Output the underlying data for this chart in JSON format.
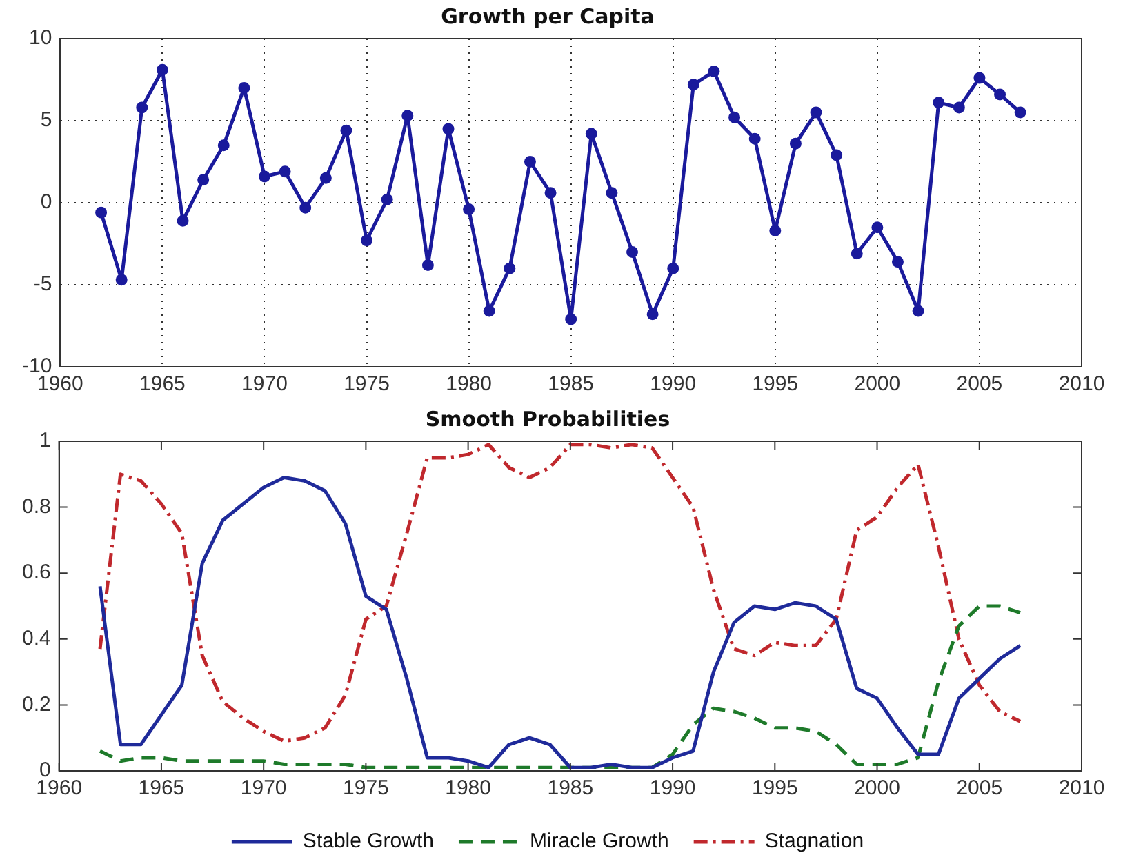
{
  "chart_data": [
    {
      "type": "line",
      "title": "Growth per Capita",
      "x": [
        1962,
        1963,
        1964,
        1965,
        1966,
        1967,
        1968,
        1969,
        1970,
        1971,
        1972,
        1973,
        1974,
        1975,
        1976,
        1977,
        1978,
        1979,
        1980,
        1981,
        1982,
        1983,
        1984,
        1985,
        1986,
        1987,
        1988,
        1989,
        1990,
        1991,
        1992,
        1993,
        1994,
        1995,
        1996,
        1997,
        1998,
        1999,
        2000,
        2001,
        2002,
        2003,
        2004,
        2005,
        2006,
        2007
      ],
      "series": [
        {
          "color": "#1a1a9c",
          "values": [
            -0.6,
            -4.7,
            5.8,
            8.1,
            -1.1,
            1.4,
            3.5,
            7.0,
            1.6,
            1.9,
            -0.3,
            1.5,
            4.4,
            -2.3,
            0.2,
            5.3,
            -3.8,
            4.5,
            -0.4,
            -6.6,
            -4.0,
            2.5,
            0.6,
            -7.1,
            4.2,
            0.6,
            -3.0,
            -6.8,
            -4.0,
            7.2,
            8.0,
            5.2,
            3.9,
            -1.7,
            3.6,
            5.5,
            2.9,
            -3.1,
            -1.5,
            -3.6,
            -6.6,
            6.1,
            5.8,
            7.6,
            6.6,
            5.5
          ]
        }
      ],
      "xlim": [
        1960,
        2010
      ],
      "xticks": [
        1960,
        1965,
        1970,
        1975,
        1980,
        1985,
        1990,
        1995,
        2000,
        2005,
        2010
      ],
      "ylim": [
        -10,
        10
      ],
      "yticks": [
        -10,
        -5,
        0,
        5,
        10
      ],
      "grid": true,
      "marker": "circle",
      "line_style": "solid",
      "legend": false
    },
    {
      "type": "line",
      "title": "Smooth Probabilities",
      "x": [
        1962,
        1963,
        1964,
        1965,
        1966,
        1967,
        1968,
        1969,
        1970,
        1971,
        1972,
        1973,
        1974,
        1975,
        1976,
        1977,
        1978,
        1979,
        1980,
        1981,
        1982,
        1983,
        1984,
        1985,
        1986,
        1987,
        1988,
        1989,
        1990,
        1991,
        1992,
        1993,
        1994,
        1995,
        1996,
        1997,
        1998,
        1999,
        2000,
        2001,
        2002,
        2003,
        2004,
        2005,
        2006,
        2007
      ],
      "series": [
        {
          "name": "Stable Growth",
          "color": "#1f2a9a",
          "line_style": "solid",
          "values": [
            0.56,
            0.08,
            0.08,
            0.17,
            0.26,
            0.63,
            0.76,
            0.81,
            0.86,
            0.89,
            0.88,
            0.85,
            0.75,
            0.53,
            0.49,
            0.28,
            0.04,
            0.04,
            0.03,
            0.01,
            0.08,
            0.1,
            0.08,
            0.01,
            0.01,
            0.02,
            0.01,
            0.01,
            0.04,
            0.06,
            0.3,
            0.45,
            0.5,
            0.49,
            0.51,
            0.5,
            0.46,
            0.25,
            0.22,
            0.13,
            0.05,
            0.05,
            0.22,
            0.28,
            0.34,
            0.38
          ]
        },
        {
          "name": "Miracle Growth",
          "color": "#1e7a2a",
          "line_style": "dashed",
          "values": [
            0.06,
            0.03,
            0.04,
            0.04,
            0.03,
            0.03,
            0.03,
            0.03,
            0.03,
            0.02,
            0.02,
            0.02,
            0.02,
            0.01,
            0.01,
            0.01,
            0.01,
            0.01,
            0.01,
            0.01,
            0.01,
            0.01,
            0.01,
            0.01,
            0.01,
            0.01,
            0.01,
            0.01,
            0.05,
            0.14,
            0.19,
            0.18,
            0.16,
            0.13,
            0.13,
            0.12,
            0.08,
            0.02,
            0.02,
            0.02,
            0.04,
            0.27,
            0.44,
            0.5,
            0.5,
            0.48
          ]
        },
        {
          "name": "Stagnation",
          "color": "#c0282d",
          "line_style": "dashdot",
          "values": [
            0.37,
            0.9,
            0.88,
            0.81,
            0.72,
            0.35,
            0.21,
            0.16,
            0.12,
            0.09,
            0.1,
            0.13,
            0.23,
            0.46,
            0.5,
            0.72,
            0.95,
            0.95,
            0.96,
            0.99,
            0.92,
            0.89,
            0.92,
            0.99,
            0.99,
            0.98,
            0.99,
            0.98,
            0.89,
            0.8,
            0.55,
            0.37,
            0.35,
            0.39,
            0.38,
            0.38,
            0.46,
            0.73,
            0.77,
            0.86,
            0.93,
            0.68,
            0.4,
            0.26,
            0.18,
            0.15
          ]
        }
      ],
      "xlim": [
        1960,
        2010
      ],
      "xticks": [
        1960,
        1965,
        1970,
        1975,
        1980,
        1985,
        1990,
        1995,
        2000,
        2005,
        2010
      ],
      "ylim": [
        0,
        1
      ],
      "yticks": [
        0,
        0.2,
        0.4,
        0.6,
        0.8,
        1
      ],
      "grid": false,
      "marker": "none",
      "legend": "bottom"
    }
  ]
}
